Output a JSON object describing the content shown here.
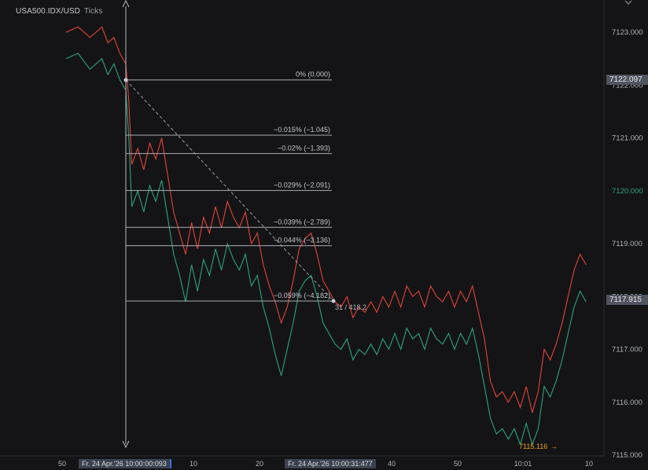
{
  "header": {
    "symbol": "USA500.IDX/USD",
    "interval": "Ticks"
  },
  "icons": {
    "corner": "chevron-down-icon"
  },
  "colors": {
    "background": "#141416",
    "ask_series": "#e0443a",
    "bid_series": "#2fa27a",
    "fib_line": "#a8abb2",
    "low_marker": "#f0a21a"
  },
  "price_axis": {
    "ticks": [
      "7123.000",
      "7122.000",
      "7121.000",
      "7120.000",
      "7119.000",
      "7118.000",
      "7117.000",
      "7116.000",
      "7115.000"
    ],
    "highlighted_tick": "7120.000",
    "badges": {
      "upper": "7122.097",
      "lower": "7117.915"
    }
  },
  "time_axis": {
    "ticks": [
      "50",
      "10",
      "20",
      "40",
      "50",
      "10:01",
      "10"
    ],
    "badges": {
      "start": "Fr. 24 Apr.'26  10:00:00:093",
      "end": "Fr. 24 Apr.'26  10:00:31:477"
    }
  },
  "annotations": {
    "low_value": "7115.116",
    "low_arrow": "→",
    "measure_label": "31 / 418.2"
  },
  "chart_data": {
    "type": "line",
    "ylim": [
      7115.0,
      7123.5
    ],
    "x_range_seconds": [
      -10,
      80
    ],
    "series": [
      {
        "role": "ask",
        "color": "#e0443a",
        "x": [
          -10,
          -8,
          -6,
          -4,
          -3,
          -2,
          -1,
          0,
          0.5,
          1,
          2,
          3,
          4,
          5,
          6,
          7,
          8,
          9,
          10,
          11,
          12,
          13,
          14,
          15,
          16,
          17,
          18,
          19,
          20,
          21,
          22,
          23,
          24,
          25,
          26,
          27,
          28,
          29,
          30,
          31,
          32,
          33,
          34,
          35,
          36,
          37,
          38,
          39,
          40,
          41,
          42,
          43,
          44,
          45,
          46,
          47,
          48,
          49,
          50,
          51,
          52,
          53,
          54,
          55,
          56,
          57,
          58,
          59,
          60,
          61,
          62,
          63,
          64,
          65,
          66,
          67,
          68,
          69,
          70,
          71,
          72,
          73,
          74,
          75,
          76,
          77
        ],
        "values": [
          7123.0,
          7123.1,
          7122.9,
          7123.1,
          7122.8,
          7122.9,
          7122.6,
          7122.4,
          7121.7,
          7120.5,
          7120.8,
          7120.4,
          7120.9,
          7120.6,
          7121.0,
          7120.3,
          7119.6,
          7119.2,
          7118.8,
          7119.4,
          7118.9,
          7119.5,
          7119.2,
          7119.7,
          7119.3,
          7119.8,
          7119.5,
          7119.3,
          7119.6,
          7119.0,
          7119.2,
          7118.6,
          7118.2,
          7117.9,
          7117.5,
          7117.8,
          7118.3,
          7118.9,
          7119.1,
          7119.2,
          7118.8,
          7118.3,
          7118.1,
          7117.9,
          7117.8,
          7118.0,
          7117.6,
          7117.8,
          7117.7,
          7117.9,
          7117.7,
          7118.0,
          7117.8,
          7118.1,
          7117.8,
          7118.2,
          7118.0,
          7118.1,
          7117.8,
          7118.2,
          7118.0,
          7117.9,
          7118.1,
          7117.8,
          7118.1,
          7117.9,
          7118.2,
          7117.7,
          7117.2,
          7116.4,
          7116.1,
          7116.2,
          7116.0,
          7116.2,
          7115.9,
          7116.3,
          7115.8,
          7116.2,
          7117.0,
          7116.8,
          7117.1,
          7117.5,
          7118.0,
          7118.5,
          7118.8,
          7118.6
        ]
      },
      {
        "role": "bid",
        "color": "#2fa27a",
        "x": [
          -10,
          -8,
          -6,
          -4,
          -3,
          -2,
          -1,
          0,
          0.5,
          1,
          2,
          3,
          4,
          5,
          6,
          7,
          8,
          9,
          10,
          11,
          12,
          13,
          14,
          15,
          16,
          17,
          18,
          19,
          20,
          21,
          22,
          23,
          24,
          25,
          26,
          27,
          28,
          29,
          30,
          31,
          32,
          33,
          34,
          35,
          36,
          37,
          38,
          39,
          40,
          41,
          42,
          43,
          44,
          45,
          46,
          47,
          48,
          49,
          50,
          51,
          52,
          53,
          54,
          55,
          56,
          57,
          58,
          59,
          60,
          61,
          62,
          63,
          64,
          65,
          66,
          67,
          68,
          69,
          70,
          71,
          72,
          73,
          74,
          75,
          76,
          77
        ],
        "values": [
          7122.5,
          7122.6,
          7122.3,
          7122.5,
          7122.2,
          7122.4,
          7122.1,
          7121.9,
          7121.0,
          7119.7,
          7120.0,
          7119.6,
          7120.1,
          7119.8,
          7120.2,
          7119.5,
          7118.8,
          7118.4,
          7117.9,
          7118.6,
          7118.1,
          7118.7,
          7118.4,
          7118.9,
          7118.5,
          7119.0,
          7118.7,
          7118.5,
          7118.8,
          7118.2,
          7118.4,
          7117.8,
          7117.4,
          7116.9,
          7116.5,
          7117.0,
          7117.5,
          7118.1,
          7118.3,
          7118.4,
          7118.0,
          7117.5,
          7117.3,
          7117.1,
          7117.0,
          7117.2,
          7116.8,
          7117.0,
          7116.9,
          7117.1,
          7116.9,
          7117.2,
          7117.0,
          7117.3,
          7117.0,
          7117.4,
          7117.2,
          7117.3,
          7117.0,
          7117.4,
          7117.2,
          7117.1,
          7117.3,
          7117.0,
          7117.3,
          7117.1,
          7117.4,
          7116.9,
          7116.3,
          7115.7,
          7115.4,
          7115.5,
          7115.3,
          7115.5,
          7115.2,
          7115.6,
          7115.2,
          7115.5,
          7116.3,
          7116.1,
          7116.4,
          7116.8,
          7117.3,
          7117.8,
          7118.1,
          7117.9
        ]
      }
    ],
    "fibonacci": {
      "from_price": 7122.097,
      "to_price": 7117.915,
      "levels": [
        {
          "label": "0% (0.000)",
          "price": 7122.097
        },
        {
          "label": "−0.015% (−1.045)",
          "price": 7121.052
        },
        {
          "label": "−0.02% (−1.393)",
          "price": 7120.704
        },
        {
          "label": "−0.029% (−2.091)",
          "price": 7120.006
        },
        {
          "label": "−0.039% (−2.789)",
          "price": 7119.308
        },
        {
          "label": "−0.044% (−3.136)",
          "price": 7118.961
        },
        {
          "label": "−0.059% (−4.182)",
          "price": 7117.915
        }
      ]
    },
    "low_marker": {
      "price": 7115.116
    },
    "grid": false,
    "legend": "none"
  }
}
